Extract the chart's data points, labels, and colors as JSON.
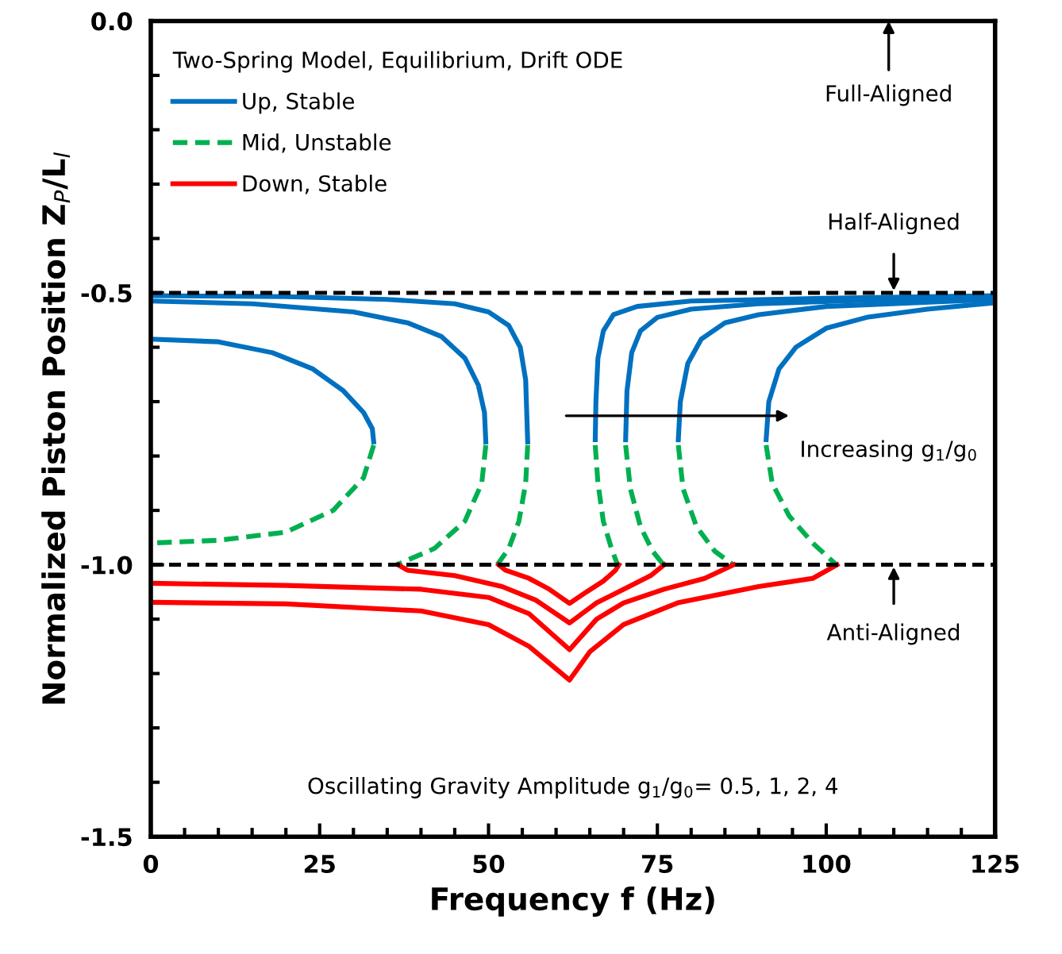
{
  "chart_data": {
    "type": "line",
    "xlabel": "Frequency f (Hz)",
    "ylabel": "Normalized Piston Position Z$_{P}$/L$_{l}$",
    "legend_title": "Two-Spring Model, Equilibrium, Drift ODE",
    "legend": "top left",
    "grid": false,
    "marker": "none",
    "xlim": [
      0,
      125
    ],
    "xticks": [
      0,
      25,
      50,
      75,
      100,
      125
    ],
    "ylim": [
      -1.5,
      0
    ],
    "yticks": [
      {
        "value": -1.5,
        "label": "-1.5"
      },
      {
        "value": -1.0,
        "label": "-1.0"
      },
      {
        "value": -0.5,
        "label": "-0.5"
      },
      {
        "value": 0,
        "label": "0.0"
      }
    ],
    "ref_lines": [
      {
        "axis": "y",
        "value": -0.5,
        "color": "#000000",
        "line_style": "dashed"
      },
      {
        "axis": "y",
        "value": -1.0,
        "color": "#000000",
        "line_style": "dashed"
      }
    ],
    "annotations": [
      "Full-Aligned",
      {
        "text": "Half-Aligned",
        "x": 110,
        "y": -0.5
      },
      {
        "text": "Anti-Aligned",
        "x": 110,
        "y": -1.0
      },
      "Increasing g$_{1}$/g$_{0}$",
      "Oscillating Gravity Amplitude g$_{1}$/g$_{0}$= 0.5, 1, 2, 4"
    ],
    "series": [
      {
        "name": "Up, Stable",
        "color": "#0070c0",
        "line_style": "solid",
        "x": [
          0,
          20,
          35,
          45,
          50,
          53,
          54.7,
          55.5,
          55.8
        ],
        "values": [
          -0.505,
          -0.507,
          -0.512,
          -0.52,
          -0.535,
          -0.56,
          -0.6,
          -0.66,
          -0.774
        ]
      },
      {
        "color": "#0070c0",
        "line_style": "solid",
        "x": [
          0,
          15,
          30,
          38,
          43,
          46.5,
          48.5,
          49.4,
          49.6
        ],
        "values": [
          -0.515,
          -0.52,
          -0.535,
          -0.555,
          -0.58,
          -0.62,
          -0.67,
          -0.72,
          -0.774
        ]
      },
      {
        "color": "#0070c0",
        "line_style": "solid",
        "x": [
          0,
          10,
          18,
          24,
          28.5,
          31.5,
          32.8,
          33
        ],
        "values": [
          -0.585,
          -0.59,
          -0.61,
          -0.64,
          -0.68,
          -0.72,
          -0.75,
          -0.774
        ]
      },
      {
        "color": "#0070c0",
        "line_style": "solid",
        "x": [
          65.8,
          65.9,
          66.2,
          67,
          68.5,
          72,
          80,
          100,
          125
        ],
        "values": [
          -0.77,
          -0.7,
          -0.62,
          -0.57,
          -0.54,
          -0.525,
          -0.515,
          -0.51,
          -0.505
        ]
      },
      {
        "color": "#0070c0",
        "line_style": "solid",
        "x": [
          70.3,
          70.5,
          71.2,
          72.5,
          75,
          80,
          90,
          110,
          125
        ],
        "values": [
          -0.77,
          -0.68,
          -0.61,
          -0.57,
          -0.545,
          -0.53,
          -0.52,
          -0.512,
          -0.508
        ]
      },
      {
        "color": "#0070c0",
        "line_style": "solid",
        "x": [
          78.1,
          78.4,
          79.5,
          81.5,
          85,
          90,
          100,
          125
        ],
        "values": [
          -0.77,
          -0.7,
          -0.63,
          -0.585,
          -0.555,
          -0.54,
          -0.525,
          -0.512
        ]
      },
      {
        "color": "#0070c0",
        "line_style": "solid",
        "x": [
          91.1,
          91.5,
          93,
          95.5,
          100,
          106,
          115,
          125
        ],
        "values": [
          -0.77,
          -0.7,
          -0.64,
          -0.6,
          -0.565,
          -0.545,
          -0.53,
          -0.518
        ]
      },
      {
        "name": "Mid, Unstable",
        "color": "#00b050",
        "line_style": "dashed",
        "x": [
          55.8,
          55.5,
          54.5,
          53,
          51.3
        ],
        "values": [
          -0.78,
          -0.85,
          -0.92,
          -0.97,
          -1.0
        ]
      },
      {
        "color": "#00b050",
        "line_style": "dashed",
        "x": [
          49.6,
          49,
          46.5,
          42,
          36.4
        ],
        "values": [
          -0.78,
          -0.85,
          -0.92,
          -0.97,
          -1.0
        ]
      },
      {
        "color": "#00b050",
        "line_style": "dashed",
        "x": [
          33,
          31.5,
          27,
          20,
          10,
          0
        ],
        "values": [
          -0.78,
          -0.84,
          -0.9,
          -0.94,
          -0.955,
          -0.96
        ]
      },
      {
        "color": "#00b050",
        "line_style": "dashed",
        "x": [
          65.8,
          66.2,
          67,
          68.2,
          69.1
        ],
        "values": [
          -0.78,
          -0.85,
          -0.92,
          -0.97,
          -1.0
        ]
      },
      {
        "color": "#00b050",
        "line_style": "dashed",
        "x": [
          70.3,
          71,
          72.5,
          74.3,
          75.9
        ],
        "values": [
          -0.78,
          -0.86,
          -0.93,
          -0.975,
          -1.0
        ]
      },
      {
        "color": "#00b050",
        "line_style": "dashed",
        "x": [
          78.1,
          78.8,
          80.8,
          83.5,
          86.2
        ],
        "values": [
          -0.78,
          -0.86,
          -0.93,
          -0.975,
          -1.0
        ]
      },
      {
        "color": "#00b050",
        "line_style": "dashed",
        "x": [
          91.1,
          92,
          94.5,
          98,
          101.5
        ],
        "values": [
          -0.78,
          -0.85,
          -0.91,
          -0.96,
          -1.0
        ]
      },
      {
        "name": "Down, Stable",
        "color": "#ff0000",
        "line_style": "solid",
        "x": [
          51.5,
          52.5,
          56,
          59,
          62,
          64.5,
          67,
          68.8,
          69.3
        ],
        "values": [
          -1.0,
          -1.01,
          -1.025,
          -1.045,
          -1.071,
          -1.05,
          -1.03,
          -1.01,
          -1.0
        ]
      },
      {
        "color": "#ff0000",
        "line_style": "solid",
        "x": [
          36.6,
          38,
          45,
          52,
          57,
          62,
          66,
          70,
          74,
          76
        ],
        "values": [
          -1.0,
          -1.01,
          -1.02,
          -1.04,
          -1.065,
          -1.107,
          -1.07,
          -1.045,
          -1.02,
          -1.0
        ]
      },
      {
        "color": "#ff0000",
        "line_style": "solid",
        "x": [
          0,
          20,
          40,
          50,
          56,
          62,
          66,
          70,
          76,
          82,
          86.3
        ],
        "values": [
          -1.034,
          -1.038,
          -1.045,
          -1.06,
          -1.09,
          -1.156,
          -1.1,
          -1.07,
          -1.045,
          -1.025,
          -1.0
        ]
      },
      {
        "color": "#ff0000",
        "line_style": "solid",
        "x": [
          0,
          20,
          40,
          50,
          56,
          62,
          65,
          70,
          78,
          90,
          98,
          101.6
        ],
        "values": [
          -1.069,
          -1.072,
          -1.085,
          -1.11,
          -1.15,
          -1.212,
          -1.16,
          -1.11,
          -1.07,
          -1.04,
          -1.025,
          -1.0
        ]
      }
    ]
  }
}
